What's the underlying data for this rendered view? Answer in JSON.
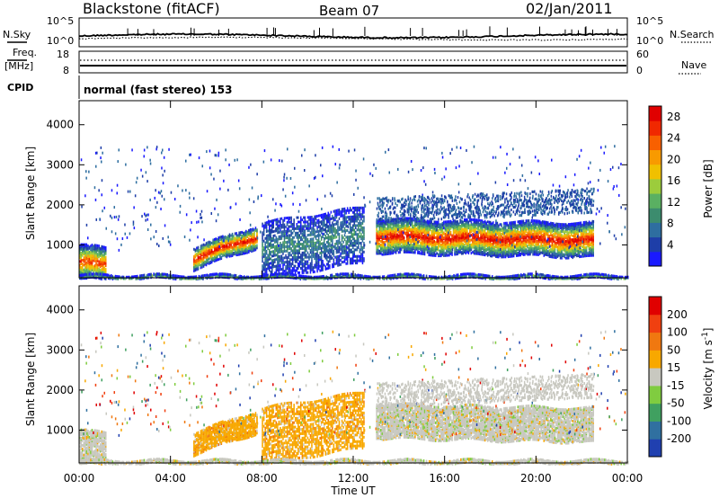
{
  "header": {
    "station": "Blackstone (fitACF)",
    "beam": "Beam 07",
    "date": "02/Jan/2011"
  },
  "top_panels": {
    "nsky_label": "N.Sky",
    "nsky_ticks": [
      "10^5",
      "10^0"
    ],
    "nsearch_label": "N.Search",
    "nsearch_ticks": [
      "10^5",
      "10^0"
    ],
    "freq_label": "Freq.",
    "freq_unit": "[MHz]",
    "freq_ticks": [
      "18",
      "8"
    ],
    "nave_label": "Nave",
    "nave_ticks": [
      "60",
      "0"
    ],
    "cpid_label": "CPID",
    "cpid_text": "normal (fast stereo) 153"
  },
  "chart_data": [
    {
      "type": "heatmap",
      "name": "power-panel",
      "ylabel": "Slant Range [km]",
      "ylim": [
        180,
        4600
      ],
      "yticks": [
        "1000",
        "2000",
        "3000",
        "4000"
      ],
      "xlim_hours": [
        0,
        24
      ],
      "colorbar": {
        "label": "Power [dB]",
        "ticks": [
          "4",
          "8",
          "12",
          "16",
          "20",
          "24",
          "28"
        ],
        "colors": [
          "#1a1aff",
          "#1e3ea8",
          "#2e6ea0",
          "#3c8c6e",
          "#5ab062",
          "#9ccc3c",
          "#f0c000",
          "#f89a00",
          "#f86000",
          "#f02800",
          "#e00000"
        ]
      }
    },
    {
      "type": "heatmap",
      "name": "velocity-panel",
      "ylabel": "Slant Range [km]",
      "ylim": [
        180,
        4600
      ],
      "yticks": [
        "1000",
        "2000",
        "3000",
        "4000"
      ],
      "xlim_hours": [
        0,
        24
      ],
      "colorbar": {
        "label": "Velocity [m s",
        "label_sup": "-1",
        "label_end": "]",
        "ticks": [
          "200",
          "100",
          "50",
          "15",
          "-15",
          "-50",
          "-100",
          "-200"
        ],
        "colors": [
          "#2040b0",
          "#3070a0",
          "#40a060",
          "#80cc40",
          "#c8c8c0",
          "#f8a800",
          "#f07810",
          "#f04010",
          "#e00000"
        ]
      }
    }
  ],
  "x_axis": {
    "ticks": [
      "00:00",
      "04:00",
      "08:00",
      "12:00",
      "16:00",
      "20:00",
      "00:00"
    ],
    "label": "Time UT"
  }
}
